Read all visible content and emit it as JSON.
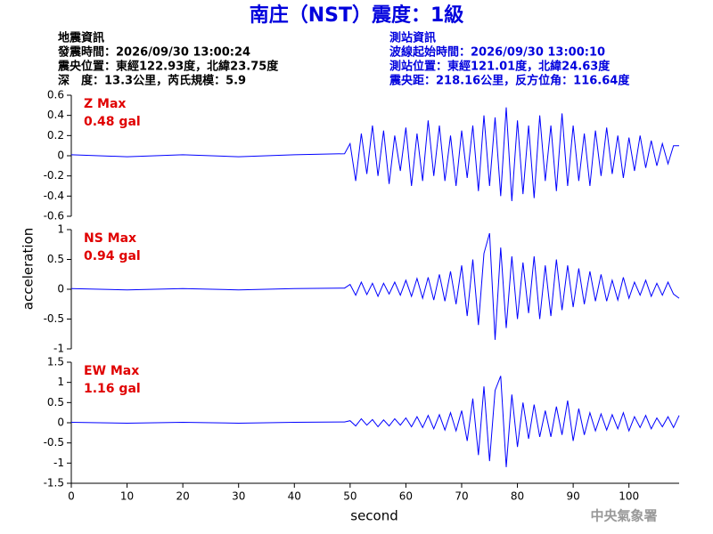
{
  "header": {
    "title": "南庄（NST）震度：1級",
    "left": [
      "地震資訊",
      "發震時間：2026/09/30 13:00:24",
      "震央位置：東經122.93度，北緯23.75度",
      "深　度：13.3公里，芮氏規模：5.9"
    ],
    "right": [
      "測站資訊",
      "波線起始時間：2026/09/30 13:00:10",
      "測站位置：東經121.01度，北緯24.63度",
      "震央距：218.16公里，反方位角：116.64度"
    ],
    "watermark": "中央氣象署"
  },
  "axis_labels": {
    "x": "second",
    "y": "acceleration"
  },
  "chart_data": [
    {
      "type": "line",
      "annotation": [
        "Z Max",
        "0.48 gal"
      ],
      "annotation_color": "#e00000",
      "color": "#0000ff",
      "ylim": [
        -0.6,
        0.6
      ],
      "yticks": [
        0.6,
        0.4,
        0.2,
        0,
        -0.2,
        -0.4,
        -0.6
      ],
      "x": [
        0,
        10,
        20,
        30,
        40,
        49,
        50,
        51,
        52,
        53,
        54,
        55,
        56,
        57,
        58,
        59,
        60,
        61,
        62,
        63,
        64,
        65,
        66,
        67,
        68,
        69,
        70,
        71,
        72,
        73,
        74,
        75,
        76,
        77,
        78,
        79,
        80,
        81,
        82,
        83,
        84,
        85,
        86,
        87,
        88,
        89,
        90,
        91,
        92,
        93,
        94,
        95,
        96,
        97,
        98,
        99,
        100,
        101,
        102,
        103,
        104,
        105,
        106,
        107,
        108,
        109
      ],
      "values": [
        0.01,
        -0.01,
        0.01,
        -0.01,
        0.01,
        0.02,
        0.12,
        -0.25,
        0.22,
        -0.18,
        0.3,
        -0.2,
        0.25,
        -0.28,
        0.2,
        -0.15,
        0.28,
        -0.3,
        0.22,
        -0.25,
        0.35,
        -0.2,
        0.3,
        -0.25,
        0.2,
        -0.3,
        0.25,
        -0.22,
        0.3,
        -0.35,
        0.4,
        -0.3,
        0.38,
        -0.4,
        0.48,
        -0.45,
        0.35,
        -0.38,
        0.3,
        -0.42,
        0.4,
        -0.25,
        0.3,
        -0.35,
        0.42,
        -0.3,
        0.3,
        -0.25,
        0.22,
        -0.3,
        0.25,
        -0.2,
        0.28,
        -0.18,
        0.2,
        -0.22,
        0.18,
        -0.15,
        0.2,
        -0.12,
        0.15,
        -0.1,
        0.12,
        -0.08,
        0.1,
        0.1
      ]
    },
    {
      "type": "line",
      "annotation": [
        "NS Max",
        "0.94 gal"
      ],
      "annotation_color": "#e00000",
      "color": "#0000ff",
      "ylim": [
        -1,
        1
      ],
      "yticks": [
        1,
        0.5,
        0,
        -0.5,
        -1
      ],
      "x": [
        0,
        10,
        20,
        30,
        40,
        49,
        50,
        51,
        52,
        53,
        54,
        55,
        56,
        57,
        58,
        59,
        60,
        61,
        62,
        63,
        64,
        65,
        66,
        67,
        68,
        69,
        70,
        71,
        72,
        73,
        74,
        75,
        76,
        77,
        78,
        79,
        80,
        81,
        82,
        83,
        84,
        85,
        86,
        87,
        88,
        89,
        90,
        91,
        92,
        93,
        94,
        95,
        96,
        97,
        98,
        99,
        100,
        101,
        102,
        103,
        104,
        105,
        106,
        107,
        108,
        109
      ],
      "values": [
        0.01,
        -0.01,
        0.01,
        -0.01,
        0.01,
        0.02,
        0.08,
        -0.1,
        0.12,
        -0.09,
        0.1,
        -0.12,
        0.1,
        -0.08,
        0.12,
        -0.1,
        0.15,
        -0.12,
        0.18,
        -0.15,
        0.2,
        -0.18,
        0.25,
        -0.2,
        0.3,
        -0.25,
        0.4,
        -0.45,
        0.5,
        -0.6,
        0.6,
        0.94,
        -0.85,
        0.7,
        -0.65,
        0.55,
        -0.5,
        0.45,
        -0.4,
        0.55,
        -0.5,
        0.4,
        -0.45,
        0.5,
        -0.35,
        0.4,
        -0.3,
        0.35,
        -0.25,
        0.3,
        -0.2,
        0.25,
        -0.2,
        0.15,
        -0.18,
        0.2,
        -0.15,
        0.12,
        -0.1,
        0.15,
        -0.12,
        0.1,
        -0.1,
        0.12,
        -0.08,
        -0.15
      ]
    },
    {
      "type": "line",
      "annotation": [
        "EW Max",
        "1.16 gal"
      ],
      "annotation_color": "#e00000",
      "color": "#0000ff",
      "ylim": [
        -1.5,
        1.5
      ],
      "yticks": [
        1.5,
        1,
        0.5,
        0,
        -0.5,
        -1,
        -1.5
      ],
      "xlim": [
        0,
        109
      ],
      "xticks": [
        0,
        10,
        20,
        30,
        40,
        50,
        60,
        70,
        80,
        90,
        100
      ],
      "x": [
        0,
        10,
        20,
        30,
        40,
        49,
        50,
        51,
        52,
        53,
        54,
        55,
        56,
        57,
        58,
        59,
        60,
        61,
        62,
        63,
        64,
        65,
        66,
        67,
        68,
        69,
        70,
        71,
        72,
        73,
        74,
        75,
        76,
        77,
        78,
        79,
        80,
        81,
        82,
        83,
        84,
        85,
        86,
        87,
        88,
        89,
        90,
        91,
        92,
        93,
        94,
        95,
        96,
        97,
        98,
        99,
        100,
        101,
        102,
        103,
        104,
        105,
        106,
        107,
        108,
        109
      ],
      "values": [
        0.01,
        -0.01,
        0.01,
        -0.01,
        0.01,
        0.02,
        0.05,
        -0.08,
        0.1,
        -0.06,
        0.08,
        -0.1,
        0.07,
        -0.08,
        0.1,
        -0.06,
        0.12,
        -0.1,
        0.15,
        -0.12,
        0.18,
        -0.15,
        0.2,
        -0.18,
        0.25,
        -0.2,
        0.3,
        -0.45,
        0.6,
        -0.8,
        0.9,
        -0.95,
        0.8,
        1.16,
        -1.1,
        0.7,
        -0.6,
        0.5,
        -0.4,
        0.45,
        -0.35,
        0.3,
        -0.35,
        0.4,
        -0.3,
        0.55,
        -0.45,
        0.35,
        -0.3,
        0.25,
        -0.2,
        0.22,
        -0.18,
        0.2,
        -0.15,
        0.25,
        -0.2,
        0.15,
        -0.12,
        0.18,
        -0.15,
        0.12,
        -0.1,
        0.15,
        -0.12,
        0.18
      ]
    }
  ]
}
